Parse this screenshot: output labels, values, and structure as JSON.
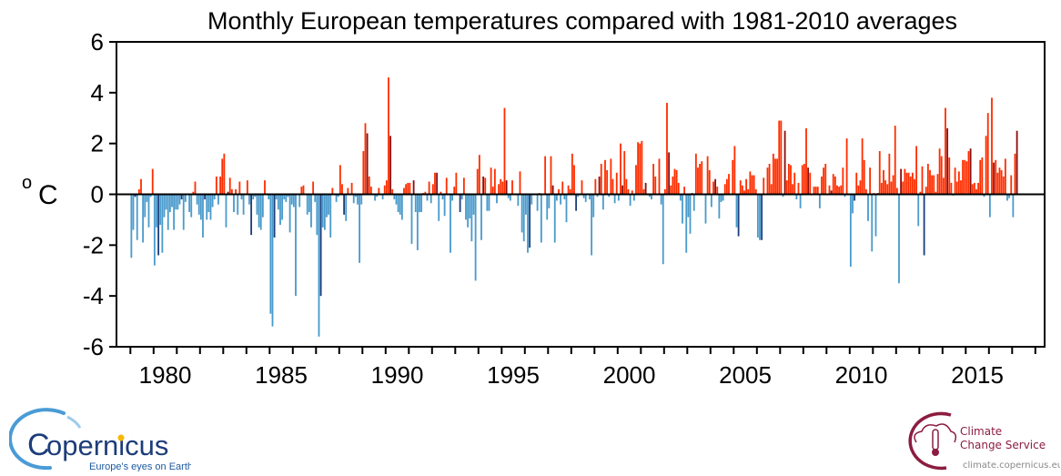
{
  "chart_data": {
    "type": "bar",
    "title": "Monthly European temperatures compared with 1981-2010 averages",
    "ylabel_sup": "o",
    "ylabel": "C",
    "xlabel": "",
    "start": "1979-01",
    "end": "2017-03",
    "frequency": "monthly",
    "ylim": [
      -6,
      6
    ],
    "xlim": [
      1978.4,
      2018.4
    ],
    "yticks": [
      -6,
      -4,
      -2,
      0,
      2,
      4,
      6
    ],
    "ytick_labels": [
      "-6",
      "-4",
      "-2",
      "0",
      "2",
      "4",
      "6"
    ],
    "xtick_labels": [
      "1980",
      "1985",
      "1990",
      "1995",
      "2000",
      "2005",
      "2010",
      "2015"
    ],
    "xtick_years": [
      1980,
      1985,
      1990,
      1995,
      2000,
      2005,
      2010,
      2015
    ],
    "grid": false,
    "highlighted_month": "March",
    "colors": {
      "positive": "#ff2e00",
      "positive_highlight": "#8c0f0f",
      "negative": "#4a9bcc",
      "negative_highlight": "#1c3f7c",
      "zero_line": "#000000"
    },
    "values": [
      -2.5,
      -1.4,
      -0.1,
      -1.8,
      0.2,
      0.6,
      -1.9,
      -0.9,
      -0.3,
      -1.3,
      -0.1,
      1.0,
      -2.8,
      -1.3,
      -2.4,
      -1.2,
      -2.3,
      -0.9,
      -0.6,
      -1.4,
      -0.7,
      -0.5,
      -1.4,
      -0.6,
      -0.6,
      -0.4,
      -0.2,
      -1.4,
      -0.3,
      0,
      -0.7,
      -0.9,
      0.1,
      0.5,
      -0.4,
      -0.8,
      -1.0,
      -1.7,
      -0.2,
      -1.0,
      -0.7,
      -1.0,
      -0.5,
      -0.2,
      0.7,
      -0.4,
      0.7,
      1.4,
      1.6,
      -1.3,
      0.1,
      0.65,
      0.2,
      -0.7,
      0.2,
      -0.8,
      0.5,
      -0.2,
      -0.8,
      0,
      0.55,
      -0.4,
      -1.6,
      -0.2,
      -0.1,
      -0.8,
      -1.3,
      -1.4,
      -0.9,
      0.55,
      0,
      -0.2,
      -4.7,
      -5.2,
      -1.7,
      -0.2,
      -0.6,
      -1.2,
      -1.0,
      -0.2,
      -0.3,
      -0.1,
      -1.5,
      -0.4,
      -0.5,
      -4.0,
      0,
      -0.5,
      0.3,
      0.35,
      0,
      -0.8,
      -0.7,
      -1.3,
      0.5,
      -0.3,
      -1.6,
      -5.6,
      -4.0,
      -1.3,
      -1.4,
      -0.9,
      -0.8,
      -1.7,
      0.25,
      0,
      -0.3,
      -0.1,
      1.15,
      0.4,
      -0.8,
      -1.05,
      0.25,
      0,
      0.45,
      -0.35,
      -0.1,
      -0.4,
      -2.7,
      -0.4,
      1.7,
      2.8,
      2.4,
      0.7,
      0.3,
      0,
      -0.25,
      -0.1,
      0.25,
      0,
      -0.2,
      0.35,
      0.55,
      4.6,
      2.3,
      0.2,
      -0.2,
      -0.4,
      -0.7,
      -0.8,
      -1.0,
      0.25,
      0.4,
      0.45,
      0.45,
      -1.95,
      0.55,
      -0.7,
      -2.2,
      -0.7,
      -0.7,
      0.05,
      0.1,
      -0.25,
      0.5,
      -0.35,
      0.4,
      0.85,
      0.85,
      -1.05,
      0.1,
      -0.2,
      -0.85,
      0.65,
      0,
      -2.3,
      -0.25,
      0.3,
      0.85,
      0,
      -0.7,
      -0.2,
      0.65,
      -1.0,
      -1.3,
      -0.95,
      -1.85,
      -0.8,
      -3.4,
      1.0,
      1.55,
      -1.8,
      0.7,
      0.65,
      -0.65,
      -0.65,
      1.05,
      0.3,
      1.0,
      -0.35,
      0.4,
      0.6,
      0.5,
      3.4,
      0.55,
      -0.15,
      -0.25,
      0.55,
      0,
      0,
      -0.45,
      0.9,
      -1.5,
      -1.85,
      -0.8,
      -2.3,
      -2.1,
      -0.4,
      0,
      0,
      -0.65,
      0.05,
      -1.9,
      0,
      1.5,
      -1.0,
      -0.55,
      1.5,
      0.35,
      -1.9,
      -0.25,
      0.2,
      -0.4,
      0.5,
      -0.2,
      -1.1,
      0.35,
      0.2,
      1.6,
      1.15,
      -0.65,
      -0.1,
      0,
      0.55,
      -0.15,
      -0.3,
      0,
      -0.2,
      -2.4,
      -0.9,
      0.6,
      -0.1,
      0.7,
      1.2,
      -0.6,
      1.35,
      0.95,
      -0.1,
      1.4,
      0.6,
      -0.35,
      0.85,
      -0.25,
      2.0,
      0.35,
      1.7,
      0.6,
      0.2,
      -0.45,
      0.15,
      -0.25,
      1.15,
      2.05,
      2.0,
      2.1,
      0.2,
      0.45,
      0,
      -0.1,
      -0.2,
      1.2,
      0.7,
      0,
      1.4,
      -0.4,
      -2.75,
      0.2,
      3.6,
      1.65,
      0.35,
      0.7,
      1.0,
      0.95,
      0.45,
      -0.25,
      -1.15,
      0.3,
      -2.3,
      -0.9,
      -1.55,
      0.05,
      -0.65,
      1.6,
      1.05,
      1.2,
      1.3,
      0,
      -1.15,
      1.5,
      0.95,
      -0.5,
      0.5,
      0.6,
      0.3,
      -0.95,
      -0.3,
      -0.25,
      0.4,
      0.6,
      0.8,
      0,
      1.35,
      1.9,
      -1.3,
      -1.65,
      0.55,
      0.35,
      0.15,
      0.6,
      0.2,
      0.9,
      0.75,
      0.75,
      0.2,
      -1.7,
      -1.8,
      -1.8,
      0.65,
      0,
      1.05,
      1.2,
      0.4,
      1.6,
      1.4,
      1.4,
      2.9,
      2.9,
      -0.1,
      2.5,
      0.55,
      1.2,
      1.15,
      0.4,
      0.85,
      -0.2,
      0.45,
      -0.55,
      1.15,
      1.2,
      2.6,
      1.05,
      0.85,
      0,
      0.3,
      0.3,
      0.3,
      -0.55,
      0.7,
      1.05,
      1.2,
      0,
      0.35,
      0.15,
      0.8,
      0.7,
      0.35,
      0.3,
      0.35,
      1.05,
      -0.1,
      2.2,
      0,
      -2.85,
      -0.75,
      -0.25,
      0.85,
      0.35,
      0.55,
      2.2,
      1.35,
      0.2,
      -1.05,
      1.05,
      -2.25,
      0.05,
      -1.65,
      0.05,
      1.7,
      0.45,
      0.95,
      0.55,
      0.4,
      1.6,
      0.5,
      0.75,
      2.7,
      0.25,
      -3.5,
      1.0,
      0.5,
      1.0,
      0.85,
      0.85,
      0.7,
      0.85,
      0.6,
      1.9,
      -1.25,
      0.1,
      1.1,
      -2.4,
      0.3,
      1.2,
      0.95,
      0.75,
      0.75,
      0.1,
      0.8,
      1.8,
      1.5,
      0.65,
      3.4,
      2.6,
      1.45,
      0.45,
      -0.05,
      1.05,
      0.5,
      0.9,
      0.55,
      1.35,
      1.35,
      1.3,
      1.7,
      1.8,
      0.4,
      0.45,
      0.2,
      0.45,
      1.35,
      1.45,
      -0.1,
      2.3,
      3.2,
      -0.9,
      3.8,
      1.25,
      1.35,
      0.85,
      1.05,
      0.95,
      0.7,
      1.4,
      -0.25,
      -0.15,
      0.75,
      -0.9,
      1.6,
      2.5
    ]
  },
  "logos": {
    "left": {
      "name": "opernicus",
      "prefix": "C",
      "tagline": "Europe's eyes on Earth",
      "color": "#1d3d7a",
      "accent": "#f6b800"
    },
    "right": {
      "line1": "Climate",
      "line2": "Change Service",
      "url": "climate.copernicus.eu",
      "color": "#8c1d40"
    }
  }
}
